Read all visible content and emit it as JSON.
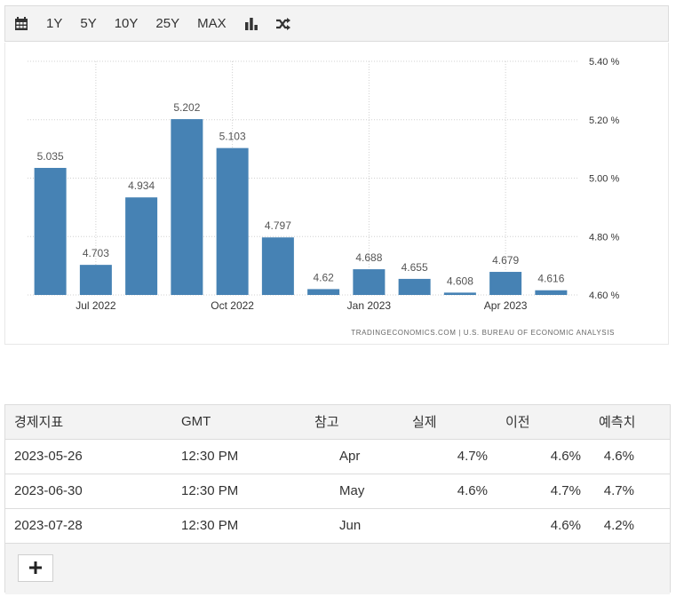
{
  "toolbar": {
    "calendar_icon": "calendar-icon",
    "ranges": [
      "1Y",
      "5Y",
      "10Y",
      "25Y",
      "MAX"
    ],
    "bar_chart_icon": "bar-chart-icon",
    "shuffle_icon": "shuffle-icon"
  },
  "chart_data": {
    "type": "bar",
    "values": [
      5.035,
      4.703,
      4.934,
      5.202,
      5.103,
      4.797,
      4.62,
      4.688,
      4.655,
      4.608,
      4.679,
      4.616
    ],
    "data_labels": [
      "5.035",
      "4.703",
      "4.934",
      "5.202",
      "5.103",
      "4.797",
      "4.62",
      "4.688",
      "4.655",
      "4.608",
      "4.679",
      "4.616"
    ],
    "x_ticks": [
      {
        "index": 1,
        "label": "Jul 2022"
      },
      {
        "index": 4,
        "label": "Oct 2022"
      },
      {
        "index": 7,
        "label": "Jan 2023"
      },
      {
        "index": 10,
        "label": "Apr 2023"
      }
    ],
    "y_ticks": [
      {
        "value": 4.6,
        "label": "4.60 %"
      },
      {
        "value": 4.8,
        "label": "4.80 %"
      },
      {
        "value": 5.0,
        "label": "5.00 %"
      },
      {
        "value": 5.2,
        "label": "5.20 %"
      },
      {
        "value": 5.4,
        "label": "5.40 %"
      }
    ],
    "ylim": [
      4.6,
      5.4
    ],
    "y_axis_side": "right",
    "grid": true,
    "bar_color": "#4682b4",
    "source": "TRADINGECONOMICS.COM  |  U.S. BUREAU OF ECONOMIC ANALYSIS"
  },
  "table": {
    "headers": [
      "경제지표",
      "GMT",
      "참고",
      "실제",
      "이전",
      "예측치"
    ],
    "rows": [
      {
        "date": "2023-05-26",
        "time": "12:30 PM",
        "ref": "Apr",
        "actual": "4.7%",
        "previous": "4.6%",
        "forecast": "4.6%"
      },
      {
        "date": "2023-06-30",
        "time": "12:30 PM",
        "ref": "May",
        "actual": "4.6%",
        "previous": "4.7%",
        "forecast": "4.7%"
      },
      {
        "date": "2023-07-28",
        "time": "12:30 PM",
        "ref": "Jun",
        "actual": "",
        "previous": "4.6%",
        "forecast": "4.2%"
      }
    ],
    "add_icon": "plus-icon"
  }
}
